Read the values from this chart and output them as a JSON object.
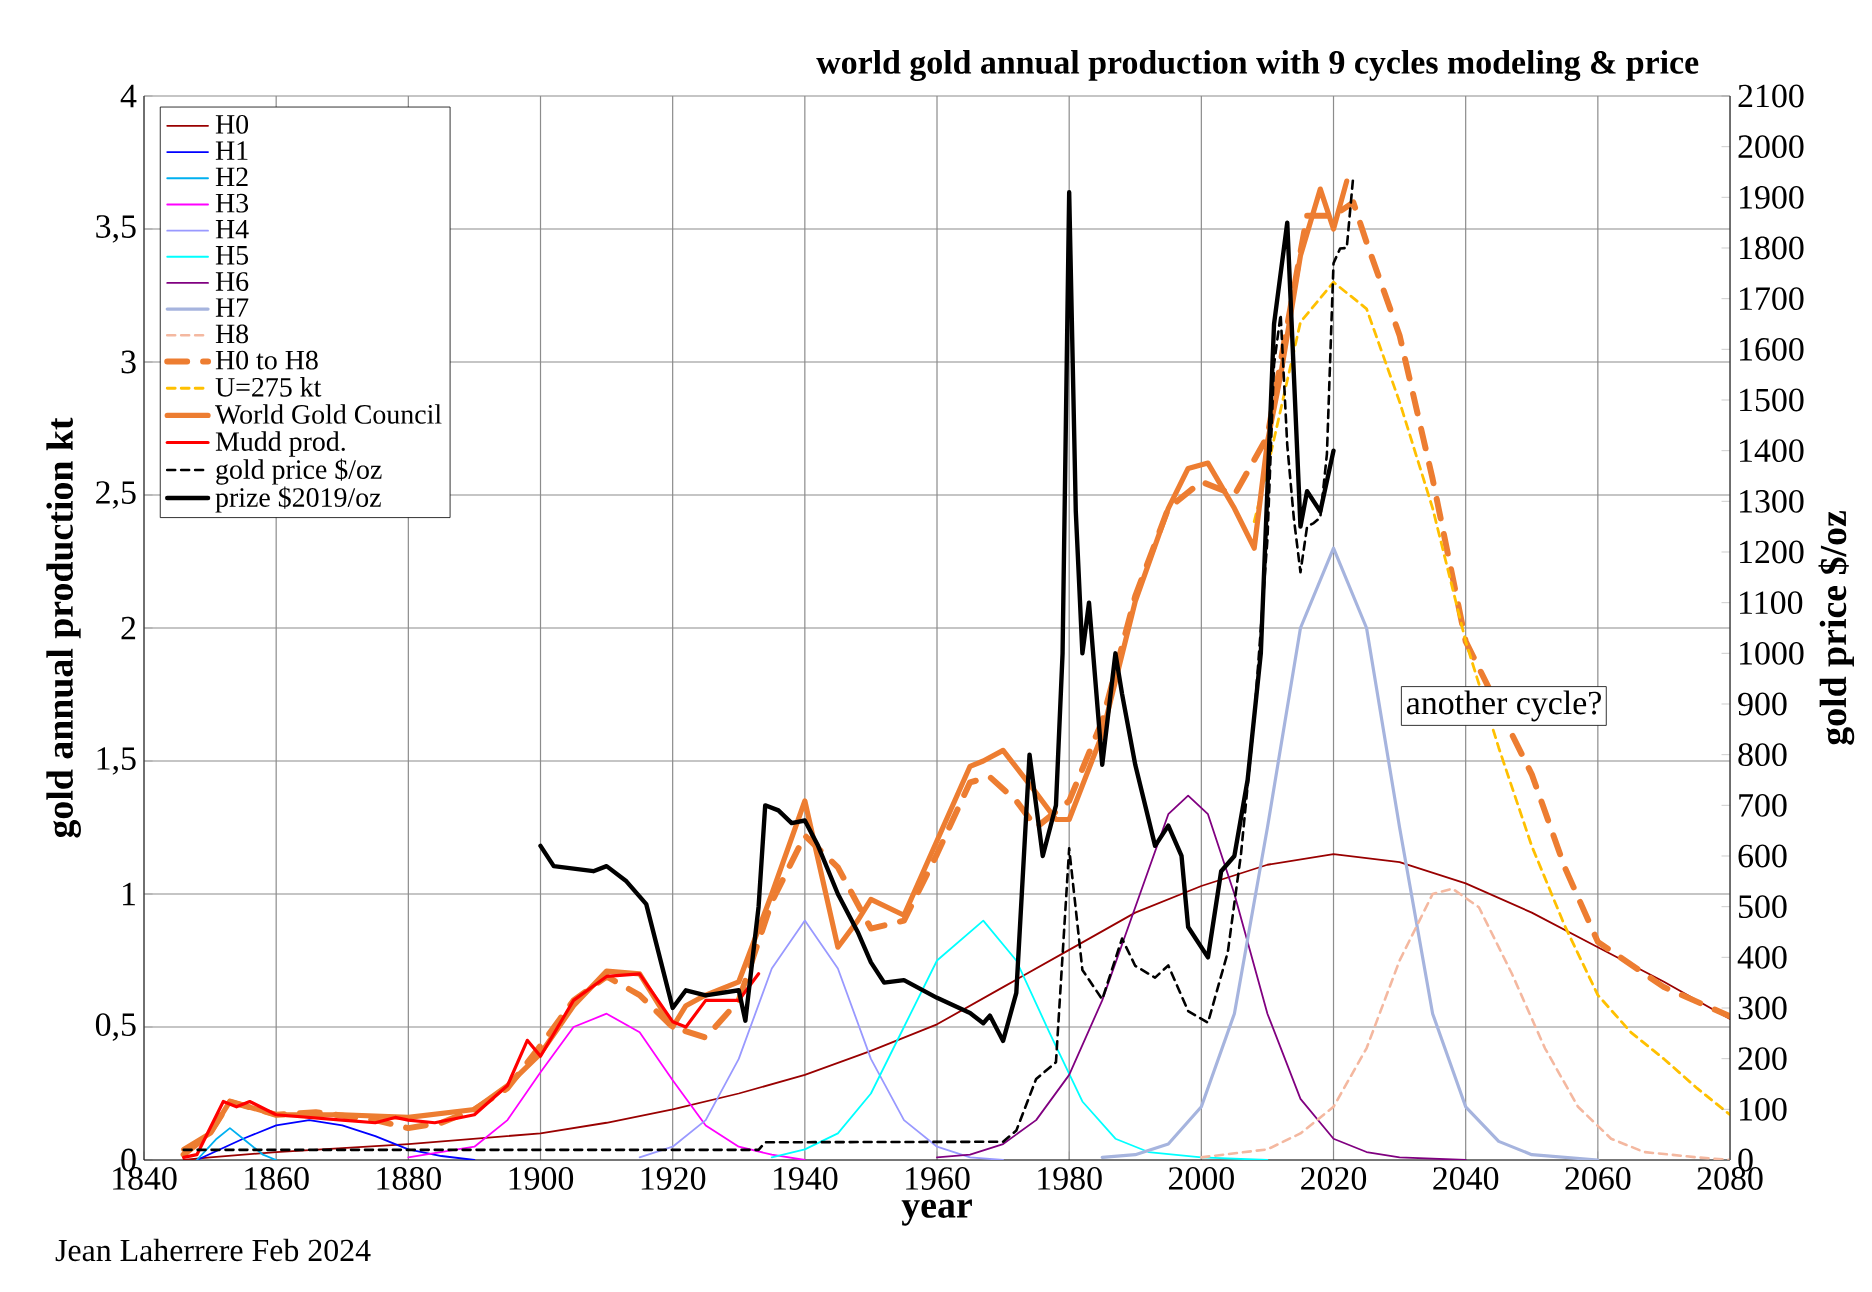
{
  "chart_data": {
    "type": "line",
    "title": "world gold annual production with 9 cycles modeling & price",
    "xlabel": "year",
    "ylabel": "gold annual production kt",
    "y2label": "gold price $/oz",
    "xlim": [
      1840,
      2080
    ],
    "xticks": [
      1840,
      1860,
      1880,
      1900,
      1920,
      1940,
      1960,
      1980,
      2000,
      2020,
      2040,
      2060,
      2080
    ],
    "ylim": [
      0,
      4
    ],
    "yticks": [
      0,
      {
        "value": 0.5,
        "label": "0,5"
      },
      1,
      {
        "value": 1.5,
        "label": "1,5"
      },
      2,
      {
        "value": 2.5,
        "label": "2,5"
      },
      3,
      {
        "value": 3.5,
        "label": "3,5"
      },
      4
    ],
    "y2lim": [
      0,
      2100
    ],
    "y2ticks": [
      0,
      100,
      200,
      300,
      400,
      500,
      600,
      700,
      800,
      900,
      1000,
      1100,
      1200,
      1300,
      1400,
      1500,
      1600,
      1700,
      1800,
      1900,
      2000,
      2100
    ],
    "grid": true,
    "legend": "top left",
    "marker": "none",
    "annotations": [
      "Jean Laherrere Feb 2024",
      "another cycle?"
    ],
    "series": [
      {
        "name": "H0",
        "color": "#990000",
        "line_style": "solid",
        "x": [
          1846,
          1850,
          1860,
          1870,
          1880,
          1890,
          1900,
          1910,
          1920,
          1930,
          1940,
          1950,
          1960,
          1970,
          1980,
          1990,
          2000,
          2010,
          2020,
          2030,
          2040,
          2050,
          2060,
          2070,
          2080
        ],
        "values": [
          0,
          0.01,
          0.03,
          0.045,
          0.06,
          0.08,
          0.1,
          0.14,
          0.19,
          0.25,
          0.32,
          0.41,
          0.51,
          0.65,
          0.79,
          0.93,
          1.03,
          1.11,
          1.15,
          1.12,
          1.04,
          0.93,
          0.8,
          0.67,
          0.53
        ]
      },
      {
        "name": "H1",
        "color": "#0000ff",
        "line_style": "solid",
        "x": [
          1848,
          1855,
          1860,
          1865,
          1870,
          1875,
          1880,
          1885,
          1890
        ],
        "values": [
          0,
          0.08,
          0.13,
          0.15,
          0.13,
          0.09,
          0.04,
          0.015,
          0
        ]
      },
      {
        "name": "H2",
        "color": "#00b0f0",
        "line_style": "solid",
        "x": [
          1848,
          1851,
          1853,
          1855,
          1858,
          1860
        ],
        "values": [
          0,
          0.08,
          0.12,
          0.08,
          0.02,
          0
        ]
      },
      {
        "name": "H3",
        "color": "#ff00ff",
        "line_style": "solid",
        "x": [
          1880,
          1890,
          1895,
          1900,
          1905,
          1910,
          1915,
          1920,
          1925,
          1930,
          1935,
          1940
        ],
        "values": [
          0.01,
          0.05,
          0.15,
          0.33,
          0.5,
          0.55,
          0.48,
          0.3,
          0.13,
          0.05,
          0.02,
          0
        ]
      },
      {
        "name": "H4",
        "color": "#9999ff",
        "line_style": "solid",
        "x": [
          1915,
          1920,
          1925,
          1930,
          1935,
          1940,
          1945,
          1950,
          1955,
          1960,
          1965,
          1970
        ],
        "values": [
          0.01,
          0.05,
          0.15,
          0.38,
          0.72,
          0.9,
          0.72,
          0.38,
          0.15,
          0.05,
          0.01,
          0
        ]
      },
      {
        "name": "H5",
        "color": "#00ffff",
        "line_style": "solid",
        "x": [
          1935,
          1940,
          1945,
          1950,
          1955,
          1960,
          1967,
          1972,
          1977,
          1982,
          1987,
          1992,
          2000,
          2010
        ],
        "values": [
          0.01,
          0.04,
          0.1,
          0.25,
          0.5,
          0.75,
          0.9,
          0.75,
          0.48,
          0.22,
          0.08,
          0.03,
          0.01,
          0
        ]
      },
      {
        "name": "H6",
        "color": "#800080",
        "line_style": "solid",
        "x": [
          1960,
          1965,
          1970,
          1975,
          1980,
          1985,
          1990,
          1995,
          1998,
          2001,
          2005,
          2010,
          2015,
          2020,
          2025,
          2030,
          2040
        ],
        "values": [
          0.01,
          0.02,
          0.06,
          0.15,
          0.32,
          0.6,
          0.95,
          1.3,
          1.37,
          1.3,
          1.0,
          0.55,
          0.23,
          0.08,
          0.03,
          0.01,
          0
        ]
      },
      {
        "name": "H7",
        "color": "#a6b4de",
        "line_style": "solid",
        "x": [
          1985,
          1990,
          1995,
          2000,
          2005,
          2010,
          2015,
          2020,
          2025,
          2030,
          2035,
          2040,
          2045,
          2050,
          2060
        ],
        "values": [
          0.01,
          0.02,
          0.06,
          0.2,
          0.55,
          1.25,
          2.0,
          2.3,
          2.0,
          1.25,
          0.55,
          0.2,
          0.07,
          0.02,
          0
        ]
      },
      {
        "name": "H8",
        "color": "#f4b8a0",
        "line_style": "dashed",
        "x": [
          2000,
          2010,
          2015,
          2020,
          2025,
          2030,
          2035,
          2038,
          2042,
          2047,
          2052,
          2057,
          2062,
          2067,
          2075,
          2080
        ],
        "values": [
          0.01,
          0.04,
          0.1,
          0.2,
          0.42,
          0.75,
          1.0,
          1.02,
          0.95,
          0.7,
          0.42,
          0.2,
          0.08,
          0.03,
          0.01,
          0
        ]
      },
      {
        "name": "H0 to H8",
        "color": "#ed7d31",
        "line_style": "dashed",
        "x": [
          1846,
          1850,
          1853,
          1860,
          1866,
          1875,
          1880,
          1885,
          1890,
          1895,
          1900,
          1905,
          1910,
          1915,
          1920,
          1925,
          1930,
          1935,
          1940,
          1945,
          1950,
          1955,
          1960,
          1965,
          1968,
          1972,
          1975,
          1980,
          1985,
          1990,
          1995,
          2000,
          2005,
          2010,
          2012,
          2016,
          2020,
          2023,
          2025,
          2030,
          2035,
          2040,
          2050,
          2055,
          2060,
          2070,
          2080
        ],
        "values": [
          0.02,
          0.1,
          0.22,
          0.17,
          0.18,
          0.15,
          0.12,
          0.14,
          0.19,
          0.27,
          0.43,
          0.6,
          0.69,
          0.62,
          0.5,
          0.46,
          0.6,
          0.97,
          1.22,
          1.1,
          0.87,
          0.9,
          1.15,
          1.42,
          1.44,
          1.35,
          1.25,
          1.35,
          1.65,
          2.12,
          2.45,
          2.55,
          2.5,
          2.72,
          3.0,
          3.55,
          3.55,
          3.6,
          3.45,
          3.1,
          2.56,
          1.95,
          1.45,
          1.1,
          0.82,
          0.65,
          0.54
        ]
      },
      {
        "name": "U=275 kt",
        "color": "#ffc000",
        "line_style": "dashed",
        "x": [
          2008,
          2010,
          2015,
          2020,
          2025,
          2030,
          2035,
          2040,
          2045,
          2050,
          2055,
          2060,
          2065,
          2070,
          2075,
          2080
        ],
        "values": [
          2.4,
          2.6,
          3.15,
          3.3,
          3.2,
          2.85,
          2.45,
          1.95,
          1.55,
          1.18,
          0.88,
          0.62,
          0.48,
          0.38,
          0.27,
          0.17
        ]
      },
      {
        "name": "World Gold Council",
        "color": "#ed7d31",
        "line_style": "solid",
        "x": [
          1846,
          1850,
          1853,
          1860,
          1870,
          1880,
          1890,
          1895,
          1900,
          1905,
          1910,
          1915,
          1920,
          1922,
          1925,
          1930,
          1935,
          1940,
          1945,
          1948,
          1950,
          1955,
          1960,
          1965,
          1967,
          1970,
          1975,
          1978,
          1980,
          1985,
          1990,
          1995,
          1998,
          2001,
          2005,
          2008,
          2010,
          2012,
          2015,
          2018,
          2020,
          2022
        ],
        "values": [
          0.04,
          0.1,
          0.22,
          0.17,
          0.17,
          0.16,
          0.19,
          0.28,
          0.4,
          0.58,
          0.71,
          0.7,
          0.5,
          0.58,
          0.62,
          0.67,
          1.0,
          1.35,
          0.8,
          0.9,
          0.98,
          0.92,
          1.2,
          1.48,
          1.5,
          1.54,
          1.38,
          1.28,
          1.28,
          1.6,
          2.1,
          2.45,
          2.6,
          2.62,
          2.45,
          2.3,
          2.7,
          2.95,
          3.4,
          3.65,
          3.5,
          3.68
        ]
      },
      {
        "name": "Mudd prod.",
        "color": "#ff0000",
        "line_style": "solid",
        "x": [
          1846,
          1848,
          1850,
          1852,
          1854,
          1856,
          1860,
          1870,
          1875,
          1878,
          1880,
          1884,
          1890,
          1895,
          1898,
          1900,
          1905,
          1910,
          1915,
          1920,
          1922,
          1925,
          1930,
          1933
        ],
        "values": [
          0.01,
          0.02,
          0.12,
          0.22,
          0.2,
          0.22,
          0.17,
          0.15,
          0.14,
          0.16,
          0.15,
          0.14,
          0.17,
          0.28,
          0.45,
          0.39,
          0.6,
          0.69,
          0.7,
          0.52,
          0.5,
          0.6,
          0.6,
          0.7
        ]
      },
      {
        "name": "gold price $/oz",
        "color": "#000000",
        "line_style": "dashed",
        "axis": "y2",
        "x": [
          1846,
          1933,
          1934,
          1970,
          1972,
          1975,
          1978,
          1980,
          1982,
          1985,
          1988,
          1990,
          1993,
          1995,
          1998,
          2001,
          2004,
          2006,
          2008,
          2010,
          2011,
          2012,
          2013,
          2014,
          2015,
          2016,
          2017,
          2018,
          2019,
          2020,
          2021,
          2022,
          2023
        ],
        "values": [
          20,
          20,
          35,
          36,
          58,
          160,
          193,
          615,
          375,
          317,
          437,
          383,
          360,
          384,
          294,
          271,
          410,
          604,
          872,
          1225,
          1570,
          1669,
          1411,
          1266,
          1160,
          1250,
          1257,
          1268,
          1393,
          1770,
          1799,
          1800,
          1943
        ]
      },
      {
        "name": "prize $2019/oz",
        "color": "#000000",
        "line_style": "solid",
        "axis": "y2",
        "x": [
          1900,
          1902,
          1905,
          1908,
          1910,
          1913,
          1916,
          1920,
          1922,
          1925,
          1930,
          1931,
          1933,
          1934,
          1936,
          1938,
          1940,
          1942,
          1945,
          1948,
          1950,
          1952,
          1955,
          1960,
          1965,
          1967,
          1968,
          1970,
          1972,
          1974,
          1976,
          1978,
          1979,
          1980,
          1981,
          1982,
          1983,
          1985,
          1987,
          1988,
          1990,
          1993,
          1995,
          1997,
          1998,
          2001,
          2003,
          2005,
          2007,
          2009,
          2011,
          2013,
          2015,
          2016,
          2018,
          2020
        ],
        "values": [
          620,
          580,
          575,
          570,
          580,
          550,
          505,
          300,
          335,
          325,
          335,
          275,
          500,
          700,
          690,
          665,
          670,
          620,
          525,
          450,
          390,
          350,
          355,
          320,
          290,
          270,
          285,
          235,
          330,
          800,
          600,
          700,
          1000,
          1910,
          1280,
          1000,
          1100,
          780,
          1000,
          920,
          780,
          620,
          660,
          600,
          460,
          400,
          570,
          600,
          750,
          1000,
          1650,
          1850,
          1250,
          1320,
          1280,
          1400
        ]
      }
    ]
  }
}
